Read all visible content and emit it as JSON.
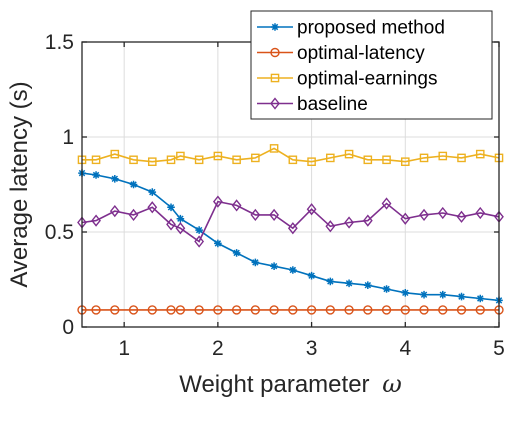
{
  "chart_data": {
    "type": "line",
    "xlabel": "Weight parameter",
    "xlabel_symbol": "ω",
    "ylabel": "Average latency (s)",
    "xlim": [
      0.55,
      5
    ],
    "ylim": [
      0,
      1.5
    ],
    "xticks": [
      1,
      2,
      3,
      4,
      5
    ],
    "xtick_labels": [
      "1",
      "2",
      "3",
      "4",
      "5"
    ],
    "yticks": [
      0,
      0.5,
      1,
      1.5
    ],
    "ytick_labels": [
      "0",
      "0.5",
      "1",
      "1.5"
    ],
    "grid": true,
    "legend_position": "top-right",
    "x": [
      0.55,
      0.7,
      0.9,
      1.1,
      1.3,
      1.5,
      1.6,
      1.8,
      2.0,
      2.2,
      2.4,
      2.6,
      2.8,
      3.0,
      3.2,
      3.4,
      3.6,
      3.8,
      4.0,
      4.2,
      4.4,
      4.6,
      4.8,
      5.0
    ],
    "series": [
      {
        "name": "proposed method",
        "color": "#0072BD",
        "marker": "asterisk",
        "values": [
          0.81,
          0.8,
          0.78,
          0.75,
          0.71,
          0.63,
          0.57,
          0.51,
          0.44,
          0.39,
          0.34,
          0.32,
          0.3,
          0.27,
          0.24,
          0.23,
          0.22,
          0.2,
          0.18,
          0.17,
          0.17,
          0.16,
          0.15,
          0.14
        ]
      },
      {
        "name": "optimal-latency",
        "color": "#D95319",
        "marker": "circle",
        "values": [
          0.09,
          0.09,
          0.09,
          0.09,
          0.09,
          0.09,
          0.09,
          0.09,
          0.09,
          0.09,
          0.09,
          0.09,
          0.09,
          0.09,
          0.09,
          0.09,
          0.09,
          0.09,
          0.09,
          0.09,
          0.09,
          0.09,
          0.09,
          0.09
        ]
      },
      {
        "name": "optimal-earnings",
        "color": "#EDB120",
        "marker": "square",
        "values": [
          0.88,
          0.88,
          0.91,
          0.88,
          0.87,
          0.88,
          0.9,
          0.88,
          0.9,
          0.88,
          0.89,
          0.94,
          0.88,
          0.87,
          0.89,
          0.91,
          0.88,
          0.88,
          0.87,
          0.89,
          0.9,
          0.89,
          0.91,
          0.89
        ]
      },
      {
        "name": "baseline",
        "color": "#7E2F8E",
        "marker": "diamond",
        "values": [
          0.55,
          0.56,
          0.61,
          0.59,
          0.63,
          0.54,
          0.52,
          0.45,
          0.66,
          0.64,
          0.59,
          0.59,
          0.52,
          0.62,
          0.53,
          0.55,
          0.56,
          0.65,
          0.57,
          0.59,
          0.6,
          0.58,
          0.6,
          0.58
        ]
      }
    ]
  }
}
